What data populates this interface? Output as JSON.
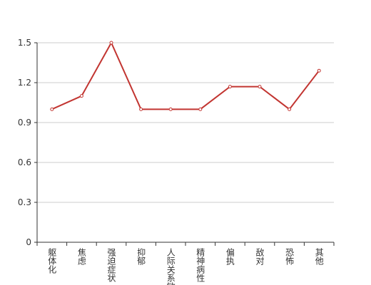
{
  "chart_data": {
    "type": "line",
    "categories": [
      "躯体化",
      "焦虑",
      "强迫症状",
      "抑郁",
      "人际关系敏感",
      "精神病性",
      "偏执",
      "敌对",
      "恐怖",
      "其他"
    ],
    "values": [
      1.0,
      1.1,
      1.5,
      1.0,
      1.0,
      1.0,
      1.17,
      1.17,
      1.0,
      1.29
    ],
    "color": "#c23531",
    "ylim": [
      0,
      1.5
    ],
    "yticks": [
      0,
      0.3,
      0.6,
      0.9,
      1.2,
      1.5
    ],
    "grid": true
  }
}
